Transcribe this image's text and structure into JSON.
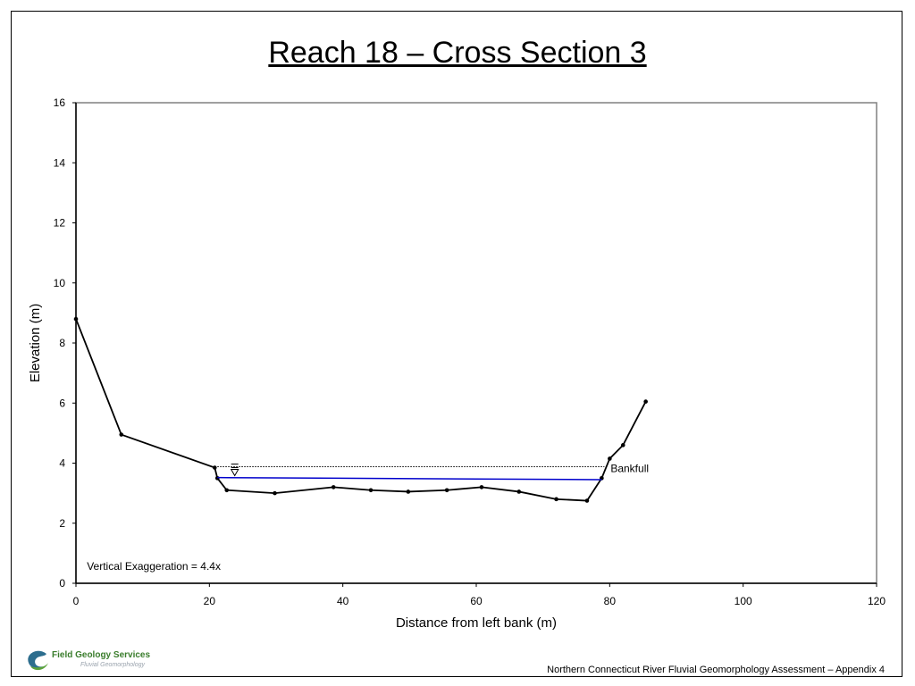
{
  "slide": {
    "title": "Reach 18 – Cross Section 3",
    "footer": "Northern Connecticut River Fluvial Geomorphology Assessment – Appendix 4",
    "logo": {
      "name": "Field Geology Services",
      "tagline": "Fluvial Geomorphology"
    }
  },
  "chart_data": {
    "type": "line",
    "xlabel": "Distance from left bank (m)",
    "ylabel": "Elevation (m)",
    "xlim": [
      0,
      120
    ],
    "ylim": [
      0,
      16
    ],
    "xticks": [
      0,
      20,
      40,
      60,
      80,
      100,
      120
    ],
    "yticks": [
      0,
      2,
      4,
      6,
      8,
      10,
      12,
      14,
      16
    ],
    "grid": false,
    "series": [
      {
        "color": "#000000",
        "x": [
          0,
          6.8,
          20.8,
          21.2,
          22.6,
          29.8,
          38.6,
          44.2,
          49.8,
          55.6,
          60.8,
          66.4,
          72.0,
          76.6,
          78.8,
          80.0,
          82.0,
          85.4
        ],
        "y": [
          8.8,
          4.95,
          3.85,
          3.5,
          3.1,
          3.0,
          3.2,
          3.1,
          3.05,
          3.1,
          3.2,
          3.05,
          2.8,
          2.75,
          3.5,
          4.15,
          4.6,
          6.05
        ]
      },
      {
        "color": "#0000cc",
        "x": [
          21.2,
          78.8
        ],
        "y": [
          3.52,
          3.45
        ]
      },
      {
        "style": "dotted",
        "color": "#000000",
        "x": [
          20.8,
          79.2
        ],
        "y": [
          3.88,
          3.88
        ]
      }
    ],
    "annotations": [
      {
        "text": "Bankfull",
        "x": 80.0,
        "y": 3.88
      },
      {
        "text": "Vertical Exaggeration = 4.4x",
        "x": 1.5,
        "y": 0.45
      }
    ]
  }
}
